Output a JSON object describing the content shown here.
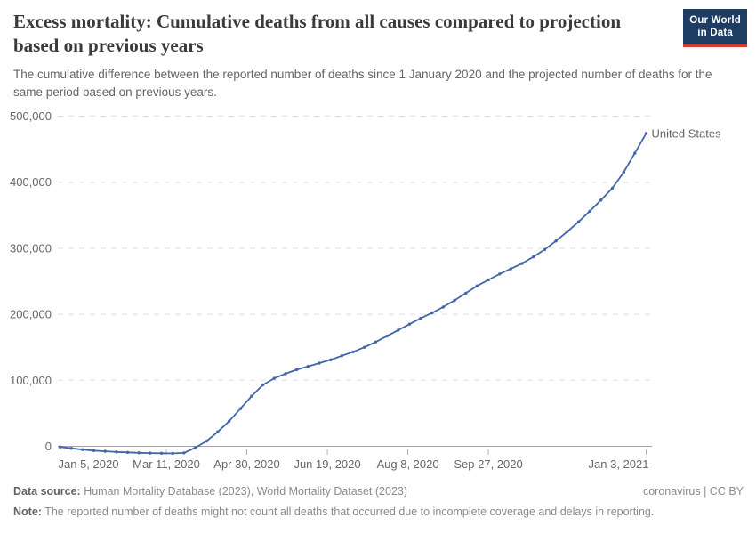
{
  "logo": {
    "line1": "Our World",
    "line2": "in Data"
  },
  "theme": {
    "line_color": "#4266A8",
    "end_label_color": "#3D64A8",
    "logo_bg": "#1D3D63",
    "logo_accent": "#D93A2E",
    "grid_color": "#DDDDDD",
    "axis_color": "#A3A3A3",
    "tick_color": "#B3B3B3",
    "tick_text_color": "#666666"
  },
  "chart_data": {
    "type": "line",
    "title": "Excess mortality: Cumulative deaths from all causes compared to projection based on previous years",
    "subtitle": "The cumulative difference between the reported number of deaths since 1 January 2020 and the projected number of deaths for the same period based on previous years.",
    "grid": "dashed-horizontal",
    "legend_position": "end-of-line",
    "xlabel": "",
    "ylabel": "",
    "ylim": [
      -20000,
      500000
    ],
    "x_ticks": [
      {
        "label": "Jan 5, 2020",
        "date": "2020-01-05"
      },
      {
        "label": "Mar 11, 2020",
        "date": "2020-03-11"
      },
      {
        "label": "Apr 30, 2020",
        "date": "2020-04-30"
      },
      {
        "label": "Jun 19, 2020",
        "date": "2020-06-19"
      },
      {
        "label": "Aug 8, 2020",
        "date": "2020-08-08"
      },
      {
        "label": "Sep 27, 2020",
        "date": "2020-09-27"
      },
      {
        "label": "Jan 3, 2021",
        "date": "2021-01-03"
      }
    ],
    "y_ticks": [
      {
        "label": "0",
        "value": 0
      },
      {
        "label": "100,000",
        "value": 100000
      },
      {
        "label": "200,000",
        "value": 200000
      },
      {
        "label": "300,000",
        "value": 300000
      },
      {
        "label": "400,000",
        "value": 400000
      },
      {
        "label": "500,000",
        "value": 500000
      }
    ],
    "series": [
      {
        "name": "United States",
        "points": [
          [
            "2020-01-05",
            -1000
          ],
          [
            "2020-01-12",
            -3000
          ],
          [
            "2020-01-19",
            -5000
          ],
          [
            "2020-01-26",
            -6500
          ],
          [
            "2020-02-02",
            -7500
          ],
          [
            "2020-02-09",
            -8500
          ],
          [
            "2020-02-16",
            -9200
          ],
          [
            "2020-02-23",
            -9800
          ],
          [
            "2020-03-01",
            -10200
          ],
          [
            "2020-03-08",
            -10500
          ],
          [
            "2020-03-15",
            -10600
          ],
          [
            "2020-03-22",
            -10000
          ],
          [
            "2020-03-29",
            -2000
          ],
          [
            "2020-04-05",
            8000
          ],
          [
            "2020-04-12",
            22000
          ],
          [
            "2020-04-19",
            38000
          ],
          [
            "2020-04-26",
            57000
          ],
          [
            "2020-05-03",
            76000
          ],
          [
            "2020-05-10",
            93000
          ],
          [
            "2020-05-17",
            103000
          ],
          [
            "2020-05-24",
            110000
          ],
          [
            "2020-05-31",
            116000
          ],
          [
            "2020-06-07",
            121000
          ],
          [
            "2020-06-14",
            126000
          ],
          [
            "2020-06-21",
            131000
          ],
          [
            "2020-06-28",
            137000
          ],
          [
            "2020-07-05",
            143000
          ],
          [
            "2020-07-12",
            150000
          ],
          [
            "2020-07-19",
            158000
          ],
          [
            "2020-07-26",
            167000
          ],
          [
            "2020-08-02",
            176000
          ],
          [
            "2020-08-09",
            185000
          ],
          [
            "2020-08-16",
            194000
          ],
          [
            "2020-08-23",
            202000
          ],
          [
            "2020-08-30",
            211000
          ],
          [
            "2020-09-06",
            221000
          ],
          [
            "2020-09-13",
            232000
          ],
          [
            "2020-09-20",
            243000
          ],
          [
            "2020-09-27",
            252000
          ],
          [
            "2020-10-04",
            261000
          ],
          [
            "2020-10-11",
            269000
          ],
          [
            "2020-10-18",
            277000
          ],
          [
            "2020-10-25",
            287000
          ],
          [
            "2020-11-01",
            298000
          ],
          [
            "2020-11-08",
            311000
          ],
          [
            "2020-11-15",
            325000
          ],
          [
            "2020-11-22",
            340000
          ],
          [
            "2020-11-29",
            356000
          ],
          [
            "2020-12-06",
            373000
          ],
          [
            "2020-12-13",
            391000
          ],
          [
            "2020-12-20",
            415000
          ],
          [
            "2020-12-27",
            444000
          ],
          [
            "2021-01-03",
            474000
          ]
        ]
      }
    ]
  },
  "footer": {
    "source_label": "Data source:",
    "source_text": " Human Mortality Database (2023), World Mortality Dataset (2023)",
    "license": "coronavirus | CC BY",
    "note_label": "Note:",
    "note_text": " The reported number of deaths might not count all deaths that occurred due to incomplete coverage and delays in reporting."
  }
}
